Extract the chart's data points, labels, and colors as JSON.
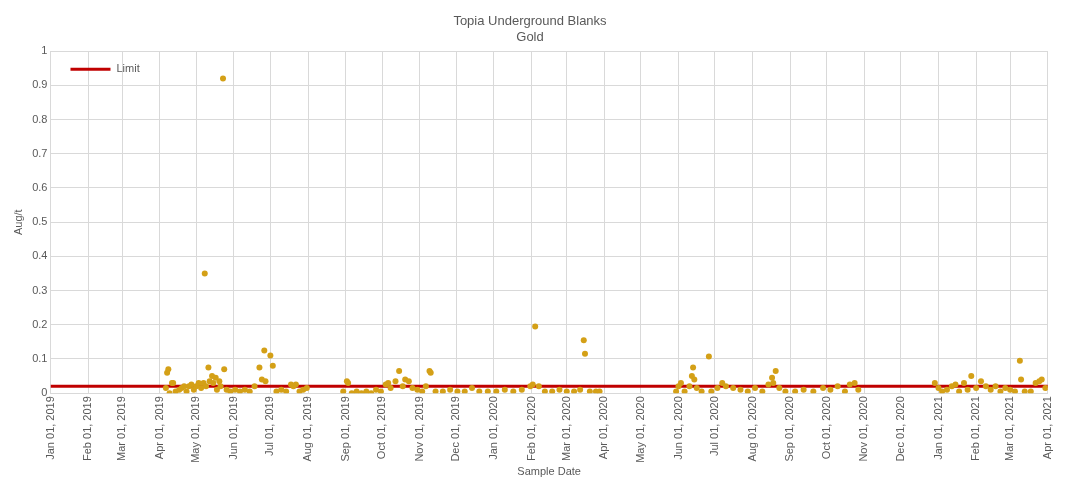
{
  "chart_data": {
    "type": "scatter",
    "title": "Topia Underground Blanks",
    "subtitle": "Gold",
    "xlabel": "Sample Date",
    "ylabel": "Aug/t",
    "xlim": [
      "2019-01-01",
      "2021-04-01"
    ],
    "xticks": [
      {
        "value": "2019-01-01",
        "label": "Jan 01, 2019"
      },
      {
        "value": "2019-02-01",
        "label": "Feb 01, 2019"
      },
      {
        "value": "2019-03-01",
        "label": "Mar 01, 2019"
      },
      {
        "value": "2019-04-01",
        "label": "Apr 01, 2019"
      },
      {
        "value": "2019-05-01",
        "label": "May 01, 2019"
      },
      {
        "value": "2019-06-01",
        "label": "Jun 01, 2019"
      },
      {
        "value": "2019-07-01",
        "label": "Jul 01, 2019"
      },
      {
        "value": "2019-08-01",
        "label": "Aug 01, 2019"
      },
      {
        "value": "2019-09-01",
        "label": "Sep 01, 2019"
      },
      {
        "value": "2019-10-01",
        "label": "Oct 01, 2019"
      },
      {
        "value": "2019-11-01",
        "label": "Nov 01, 2019"
      },
      {
        "value": "2019-12-01",
        "label": "Dec 01, 2019"
      },
      {
        "value": "2020-01-01",
        "label": "Jan 01, 2020"
      },
      {
        "value": "2020-02-01",
        "label": "Feb 01, 2020"
      },
      {
        "value": "2020-03-01",
        "label": "Mar 01, 2020"
      },
      {
        "value": "2020-04-01",
        "label": "Apr 01, 2020"
      },
      {
        "value": "2020-05-01",
        "label": "May 01, 2020"
      },
      {
        "value": "2020-06-01",
        "label": "Jun 01, 2020"
      },
      {
        "value": "2020-07-01",
        "label": "Jul 01, 2020"
      },
      {
        "value": "2020-08-01",
        "label": "Aug 01, 2020"
      },
      {
        "value": "2020-09-01",
        "label": "Sep 01, 2020"
      },
      {
        "value": "2020-10-01",
        "label": "Oct 01, 2020"
      },
      {
        "value": "2020-11-01",
        "label": "Nov 01, 2020"
      },
      {
        "value": "2020-12-01",
        "label": "Dec 01, 2020"
      },
      {
        "value": "2021-01-01",
        "label": "Jan 01, 2021"
      },
      {
        "value": "2021-02-01",
        "label": "Feb 01, 2021"
      },
      {
        "value": "2021-03-01",
        "label": "Mar 01, 2021"
      },
      {
        "value": "2021-04-01",
        "label": "Apr 01, 2021"
      }
    ],
    "ylim": [
      0,
      1
    ],
    "yticks": [
      0,
      0.1,
      0.2,
      0.3,
      0.4,
      0.5,
      0.6,
      0.7,
      0.8,
      0.9,
      1
    ],
    "grid": true,
    "legend": "top left",
    "series": [
      {
        "marker": "circle",
        "color": "#d4a017",
        "x": [
          "2019-04-06",
          "2019-04-07",
          "2019-04-08",
          "2019-04-09",
          "2019-04-11",
          "2019-04-12",
          "2019-04-14",
          "2019-04-17",
          "2019-04-19",
          "2019-04-21",
          "2019-04-23",
          "2019-04-25",
          "2019-04-27",
          "2019-04-29",
          "2019-05-01",
          "2019-05-03",
          "2019-05-05",
          "2019-05-07",
          "2019-05-08",
          "2019-05-09",
          "2019-05-11",
          "2019-05-12",
          "2019-05-14",
          "2019-05-15",
          "2019-05-17",
          "2019-05-18",
          "2019-05-20",
          "2019-05-21",
          "2019-05-23",
          "2019-05-24",
          "2019-05-26",
          "2019-05-29",
          "2019-06-02",
          "2019-06-06",
          "2019-06-10",
          "2019-06-14",
          "2019-06-18",
          "2019-06-22",
          "2019-06-24",
          "2019-06-26",
          "2019-06-27",
          "2019-07-01",
          "2019-07-03",
          "2019-07-06",
          "2019-07-10",
          "2019-07-14",
          "2019-07-18",
          "2019-07-20",
          "2019-07-22",
          "2019-07-25",
          "2019-07-28",
          "2019-07-31",
          "2019-08-30",
          "2019-09-02",
          "2019-09-03",
          "2019-09-06",
          "2019-09-10",
          "2019-09-14",
          "2019-09-18",
          "2019-09-22",
          "2019-09-26",
          "2019-09-30",
          "2019-10-04",
          "2019-10-06",
          "2019-10-08",
          "2019-10-12",
          "2019-10-15",
          "2019-10-18",
          "2019-10-20",
          "2019-10-23",
          "2019-10-26",
          "2019-10-30",
          "2019-11-03",
          "2019-11-06",
          "2019-11-09",
          "2019-11-10",
          "2019-11-14",
          "2019-11-20",
          "2019-11-26",
          "2019-12-02",
          "2019-12-08",
          "2019-12-14",
          "2019-12-20",
          "2019-12-27",
          "2020-01-03",
          "2020-01-10",
          "2020-01-17",
          "2020-01-24",
          "2020-01-31",
          "2020-02-02",
          "2020-02-04",
          "2020-02-07",
          "2020-02-12",
          "2020-02-18",
          "2020-02-24",
          "2020-03-01",
          "2020-03-07",
          "2020-03-12",
          "2020-03-15",
          "2020-03-16",
          "2020-03-20",
          "2020-03-25",
          "2020-03-28",
          "2020-05-30",
          "2020-06-01",
          "2020-06-03",
          "2020-06-06",
          "2020-06-10",
          "2020-06-12",
          "2020-06-13",
          "2020-06-14",
          "2020-06-16",
          "2020-06-20",
          "2020-06-26",
          "2020-06-28",
          "2020-07-03",
          "2020-07-07",
          "2020-07-10",
          "2020-07-16",
          "2020-07-22",
          "2020-07-28",
          "2020-08-03",
          "2020-08-09",
          "2020-08-14",
          "2020-08-17",
          "2020-08-18",
          "2020-08-20",
          "2020-08-23",
          "2020-08-28",
          "2020-09-05",
          "2020-09-12",
          "2020-09-20",
          "2020-09-28",
          "2020-10-04",
          "2020-10-10",
          "2020-10-16",
          "2020-10-20",
          "2020-10-24",
          "2020-10-27",
          "2020-12-29",
          "2021-01-01",
          "2021-01-04",
          "2021-01-08",
          "2021-01-12",
          "2021-01-15",
          "2021-01-18",
          "2021-01-22",
          "2021-01-25",
          "2021-01-28",
          "2021-02-01",
          "2021-02-05",
          "2021-02-09",
          "2021-02-13",
          "2021-02-17",
          "2021-02-21",
          "2021-02-25",
          "2021-03-01",
          "2021-03-05",
          "2021-03-09",
          "2021-03-10",
          "2021-03-13",
          "2021-03-18",
          "2021-03-22",
          "2021-03-25",
          "2021-03-27",
          "2021-03-30"
        ],
        "values": [
          0.015,
          0.06,
          0.07,
          0,
          0.03,
          0.03,
          0.005,
          0.01,
          0.015,
          0.02,
          0.005,
          0.02,
          0.025,
          0.01,
          0.02,
          0.03,
          0.015,
          0.03,
          0.35,
          0.02,
          0.075,
          0.035,
          0.05,
          0.03,
          0.045,
          0.01,
          0.035,
          0.02,
          0.92,
          0.07,
          0.01,
          0.005,
          0.01,
          0.005,
          0.01,
          0.005,
          0.02,
          0.075,
          0.04,
          0.125,
          0.035,
          0.11,
          0.08,
          0.005,
          0.01,
          0.005,
          0.025,
          0.02,
          0.025,
          0.005,
          0.01,
          0.015,
          0.005,
          0.035,
          0.03,
          0,
          0.005,
          0,
          0.005,
          0,
          0.01,
          0.005,
          0.025,
          0.03,
          0.015,
          0.035,
          0.065,
          0.02,
          0.04,
          0.035,
          0.015,
          0.01,
          0.005,
          0.02,
          0.065,
          0.06,
          0.005,
          0.005,
          0.01,
          0.005,
          0.005,
          0.015,
          0.005,
          0.005,
          0.005,
          0.01,
          0.005,
          0.01,
          0.02,
          0.025,
          0.195,
          0.02,
          0.005,
          0.005,
          0.01,
          0.005,
          0.005,
          0.01,
          0.155,
          0.115,
          0.005,
          0.005,
          0.005,
          0.005,
          0.02,
          0.03,
          0.005,
          0.02,
          0.05,
          0.075,
          0.04,
          0.015,
          0.005,
          0.107,
          0.005,
          0.015,
          0.03,
          0.02,
          0.015,
          0.01,
          0.005,
          0.015,
          0.005,
          0.025,
          0.045,
          0.03,
          0.065,
          0.015,
          0.005,
          0.005,
          0.01,
          0.005,
          0.015,
          0.01,
          0.02,
          0.005,
          0.025,
          0.03,
          0.01,
          0.03,
          0.015,
          0.005,
          0.01,
          0.02,
          0.025,
          0.005,
          0.03,
          0.01,
          0.05,
          0.015,
          0.035,
          0.02,
          0.01,
          0.02,
          0.005,
          0.015,
          0.01,
          0.005,
          0.095,
          0.04,
          0.005,
          0.005,
          0.03,
          0.035,
          0.04,
          0.015
        ]
      },
      {
        "type": "line",
        "marker": "none",
        "name": "Limit",
        "color": "#c00000",
        "x": [
          "2019-01-01",
          "2021-04-01"
        ],
        "values": [
          0.02,
          0.02
        ]
      }
    ]
  }
}
